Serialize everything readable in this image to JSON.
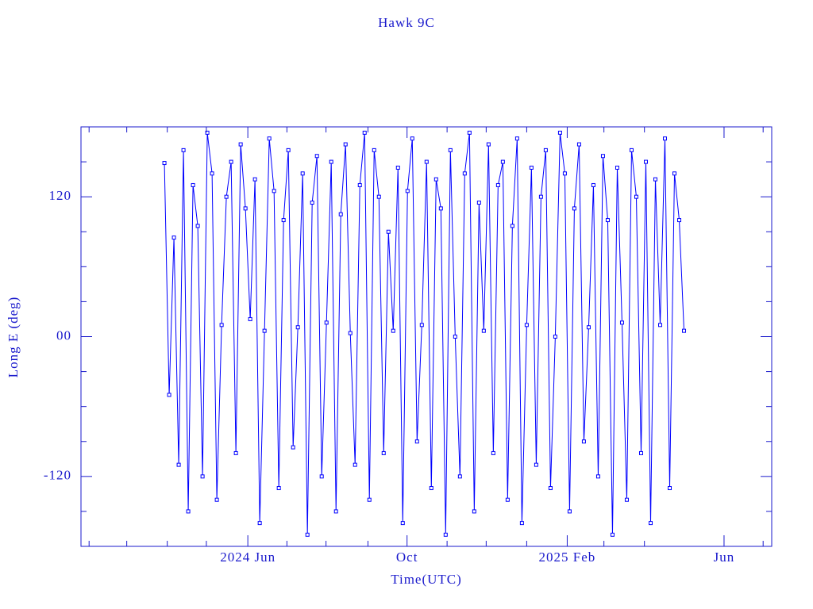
{
  "chart_data": {
    "type": "line",
    "title": "Hawk 9C",
    "xlabel": "Time(UTC)",
    "ylabel": "Long E (deg)",
    "xlim": [
      2024.065,
      2025.514
    ],
    "ylim": [
      -180,
      180
    ],
    "xticks": [
      {
        "value": 2024.415,
        "label": "2024 Jun"
      },
      {
        "value": 2024.749,
        "label": "Oct"
      },
      {
        "value": 2025.085,
        "label": "2025 Feb"
      },
      {
        "value": 2025.414,
        "label": "Jun"
      }
    ],
    "xminorticks": [
      2024.082,
      2024.161,
      2024.246,
      2024.328,
      2024.497,
      2024.579,
      2024.667,
      2024.833,
      2024.915,
      2025.0,
      2025.162,
      2025.247,
      2025.496
    ],
    "yticks": [
      -120,
      {
        "value": 0,
        "label": "00"
      },
      120
    ],
    "yminorticks": [
      -150,
      -90,
      -60,
      -30,
      30,
      60,
      90,
      150
    ],
    "grid": false,
    "series": [
      {
        "color": "#0000ff",
        "x": [
          2024.24,
          2024.25,
          2024.26,
          2024.27,
          2024.28,
          2024.29,
          2024.3,
          2024.31,
          2024.32,
          2024.33,
          2024.34,
          2024.35,
          2024.36,
          2024.37,
          2024.38,
          2024.39,
          2024.4,
          2024.41,
          2024.42,
          2024.43,
          2024.44,
          2024.45,
          2024.46,
          2024.47,
          2024.48,
          2024.49,
          2024.5,
          2024.51,
          2024.52,
          2024.53,
          2024.54,
          2024.55,
          2024.56,
          2024.57,
          2024.58,
          2024.59,
          2024.6,
          2024.61,
          2024.62,
          2024.63,
          2024.64,
          2024.65,
          2024.66,
          2024.67,
          2024.68,
          2024.69,
          2024.7,
          2024.71,
          2024.72,
          2024.73,
          2024.74,
          2024.75,
          2024.76,
          2024.77,
          2024.78,
          2024.79,
          2024.8,
          2024.81,
          2024.82,
          2024.83,
          2024.84,
          2024.85,
          2024.86,
          2024.87,
          2024.88,
          2024.89,
          2024.9,
          2024.91,
          2024.92,
          2024.93,
          2024.94,
          2024.95,
          2024.96,
          2024.97,
          2024.98,
          2024.99,
          2025.0,
          2025.01,
          2025.02,
          2025.03,
          2025.04,
          2025.05,
          2025.06,
          2025.07,
          2025.08,
          2025.09,
          2025.1,
          2025.11,
          2025.12,
          2025.13,
          2025.14,
          2025.15,
          2025.16,
          2025.17,
          2025.18,
          2025.19,
          2025.2,
          2025.21,
          2025.22,
          2025.23,
          2025.24,
          2025.25,
          2025.26,
          2025.27,
          2025.28,
          2025.29,
          2025.3,
          2025.31,
          2025.32,
          2025.33
        ],
        "values": [
          149,
          -50,
          85,
          -110,
          160,
          -150,
          130,
          95,
          -120,
          175,
          140,
          -140,
          10,
          120,
          150,
          -100,
          165,
          110,
          15,
          135,
          -160,
          5,
          170,
          125,
          -130,
          100,
          160,
          -95,
          8,
          140,
          -170,
          115,
          155,
          -120,
          12,
          150,
          -150,
          105,
          165,
          3,
          -110,
          130,
          175,
          -140,
          160,
          120,
          -100,
          90,
          5,
          145,
          -160,
          125,
          170,
          -90,
          10,
          150,
          -130,
          135,
          110,
          -170,
          160,
          0,
          -120,
          140,
          175,
          -150,
          115,
          5,
          165,
          -100,
          130,
          150,
          -140,
          95,
          170,
          -160,
          10,
          145,
          -110,
          120,
          160,
          -130,
          0,
          175,
          140,
          -150,
          110,
          165,
          -90,
          8,
          130,
          -120,
          155,
          100,
          -170,
          145,
          12,
          -140,
          160,
          120,
          -100,
          150,
          -160,
          135,
          10,
          170,
          -130,
          140,
          100,
          5
        ]
      }
    ]
  }
}
